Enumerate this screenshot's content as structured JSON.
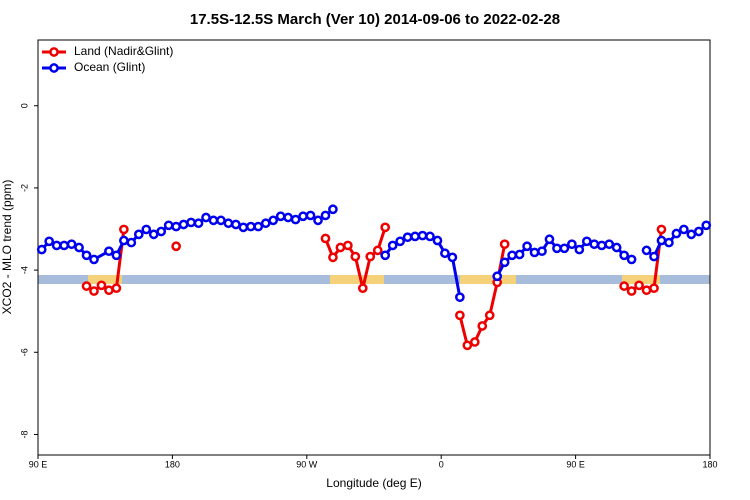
{
  "chart_data": {
    "type": "line",
    "title": "17.5S-12.5S March (Ver 10)   2014-09-06 to 2022-02-28",
    "x_label": "Longitude (deg E)",
    "y_label": "XCO2 - MLO trend (ppm)",
    "xlim": [
      90,
      540
    ],
    "ylim": [
      -8.5,
      1.6
    ],
    "xticks": [
      {
        "value": 90,
        "label": "90 E"
      },
      180,
      {
        "value": 270,
        "label": "90 W"
      },
      0,
      {
        "value": 450,
        "label": "90 E"
      },
      {
        "value": 540,
        "label": "180"
      }
    ],
    "yticks": [
      0,
      -2,
      -4,
      -6,
      -8
    ],
    "legend": "upper left",
    "series": [
      {
        "name": "Land (Nadir&Glint)",
        "color": "#ee0000",
        "x": [
          122.5,
          127.5,
          132.5,
          137.5,
          142.5,
          147.5,
          null,
          182.5,
          null,
          282.5,
          287.5,
          292.5,
          297.5,
          302.5,
          307.5,
          312.5,
          317.5,
          322.5,
          null,
          372.5,
          377.5,
          382.5,
          387.5,
          392.5,
          397.5,
          402.5,
          null,
          482.5,
          487.5,
          492.5,
          497.5,
          502.5,
          507.5
        ],
        "values": [
          -4.39,
          -4.51,
          -4.37,
          -4.49,
          -4.44,
          -3.01,
          null,
          -3.42,
          null,
          -3.23,
          -3.69,
          -3.45,
          -3.4,
          -3.67,
          -4.44,
          -3.67,
          -3.52,
          -2.96,
          null,
          -5.1,
          -5.83,
          -5.75,
          -5.36,
          -5.1,
          -4.3,
          -3.37,
          null,
          -4.39,
          -4.51,
          -4.37,
          -4.49,
          -4.44,
          -3.01
        ]
      },
      {
        "name": "Ocean (Glint)",
        "color": "#0000ee",
        "x": [
          92.5,
          97.5,
          102.5,
          107.5,
          112.5,
          117.5,
          122.5,
          127.5,
          137.5,
          142.5,
          147.5,
          152.5,
          157.5,
          162.5,
          167.5,
          172.5,
          177.5,
          182.5,
          187.5,
          192.5,
          197.5,
          202.5,
          207.5,
          212.5,
          217.5,
          222.5,
          227.5,
          232.5,
          237.5,
          242.5,
          247.5,
          252.5,
          257.5,
          262.5,
          267.5,
          272.5,
          277.5,
          282.5,
          287.5,
          null,
          322.5,
          327.5,
          332.5,
          337.5,
          342.5,
          347.5,
          352.5,
          357.5,
          362.5,
          367.5,
          372.5,
          null,
          397.5,
          402.5,
          407.5,
          412.5,
          417.5,
          422.5,
          427.5,
          432.5,
          437.5,
          442.5,
          447.5,
          452.5,
          457.5,
          462.5,
          467.5,
          472.5,
          477.5,
          482.5,
          487.5,
          null,
          497.5,
          502.5,
          507.5,
          512.5,
          517.5,
          522.5,
          527.5,
          532.5,
          537.5
        ],
        "values": [
          -3.5,
          -3.3,
          -3.4,
          -3.4,
          -3.37,
          -3.45,
          -3.64,
          -3.74,
          -3.54,
          -3.64,
          -3.28,
          -3.33,
          -3.13,
          -3.01,
          -3.13,
          -3.06,
          -2.91,
          -2.94,
          -2.89,
          -2.84,
          -2.86,
          -2.72,
          -2.79,
          -2.79,
          -2.86,
          -2.89,
          -2.96,
          -2.94,
          -2.94,
          -2.86,
          -2.79,
          -2.69,
          -2.72,
          -2.77,
          -2.69,
          -2.67,
          -2.79,
          -2.67,
          -2.52,
          null,
          -3.64,
          -3.4,
          -3.3,
          -3.2,
          -3.18,
          -3.16,
          -3.18,
          -3.28,
          -3.59,
          -3.69,
          -4.66,
          null,
          -4.15,
          -3.81,
          -3.64,
          -3.62,
          -3.42,
          -3.57,
          -3.54,
          -3.25,
          -3.47,
          -3.47,
          -3.37,
          -3.5,
          -3.3,
          -3.37,
          -3.4,
          -3.37,
          -3.45,
          -3.64,
          -3.74,
          null,
          -3.52,
          -3.67,
          -3.28,
          -3.33,
          -3.11,
          -3.01,
          -3.13,
          -3.06,
          -2.91
        ]
      }
    ]
  }
}
